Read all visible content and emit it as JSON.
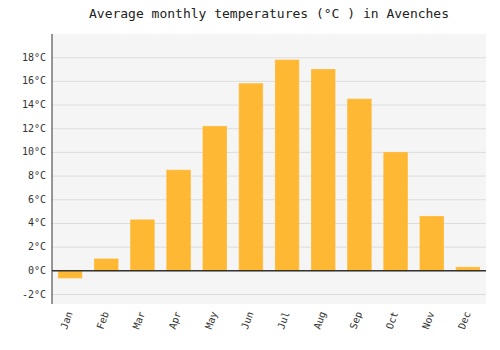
{
  "chart_data": {
    "type": "bar",
    "title": "Average monthly temperatures (°C ) in Avenches",
    "categories": [
      "Jan",
      "Feb",
      "Mar",
      "Apr",
      "May",
      "Jun",
      "Jul",
      "Aug",
      "Sep",
      "Oct",
      "Nov",
      "Dec"
    ],
    "values": [
      -0.6,
      1.0,
      4.3,
      8.5,
      12.2,
      15.8,
      17.8,
      17.0,
      14.5,
      10.0,
      4.6,
      0.3
    ],
    "color": "#FFB833",
    "ylim": [
      -2.8,
      20.0
    ],
    "yticks": [
      {
        "value": -2,
        "label": "-2°C"
      },
      {
        "value": 0,
        "label": "0°C"
      },
      {
        "value": 2,
        "label": "2°C"
      },
      {
        "value": 4,
        "label": "4°C"
      },
      {
        "value": 6,
        "label": "6°C"
      },
      {
        "value": 8,
        "label": "8°C"
      },
      {
        "value": 10,
        "label": "10°C"
      },
      {
        "value": 12,
        "label": "12°C"
      },
      {
        "value": 14,
        "label": "14°C"
      },
      {
        "value": 16,
        "label": "16°C"
      },
      {
        "value": 18,
        "label": "18°C"
      }
    ],
    "grid": true
  }
}
